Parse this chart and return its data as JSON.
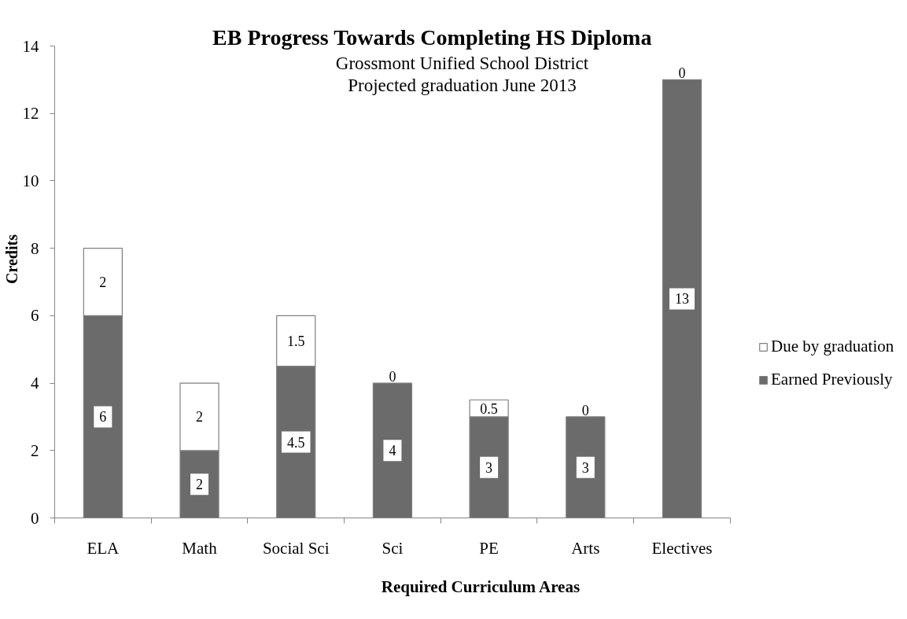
{
  "chart_data": {
    "type": "bar",
    "title": "EB Progress Towards Completing HS Diploma",
    "subtitle": "Grossmont Unified School District\nProjected graduation June 2013",
    "xlabel": "Required Curriculum Areas",
    "ylabel": "Credits",
    "categories": [
      "ELA",
      "Math",
      "Social Sci",
      "Sci",
      "PE",
      "Arts",
      "Electives"
    ],
    "stacked": true,
    "series": [
      {
        "name": "Earned Previously",
        "color": "#6b6b6b",
        "values": [
          6,
          2,
          4.5,
          4,
          3,
          3,
          13
        ]
      },
      {
        "name": "Due by graduation",
        "color": "#ffffff",
        "values": [
          2,
          2,
          1.5,
          0,
          0.5,
          0,
          0
        ]
      }
    ],
    "ylim": [
      0,
      14
    ],
    "yticks": [
      0,
      2,
      4,
      6,
      8,
      10,
      12,
      14
    ],
    "grid": false,
    "legend": "right",
    "data_labels": true
  }
}
